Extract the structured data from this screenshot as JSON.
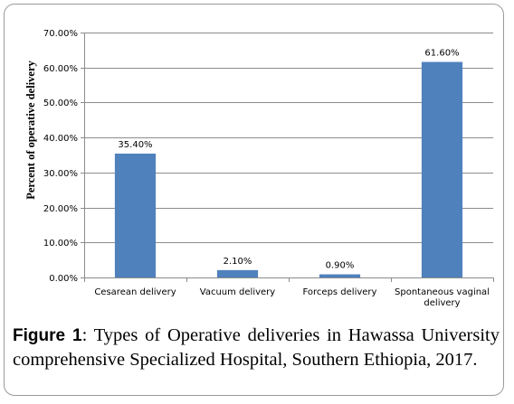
{
  "chart_data": {
    "type": "bar",
    "categories": [
      "Cesarean delivery",
      "Vacuum delivery",
      "Forceps delivery",
      "Spontaneous vaginal delivery"
    ],
    "category_lines": [
      [
        "Cesarean delivery"
      ],
      [
        "Vacuum delivery"
      ],
      [
        "Forceps delivery"
      ],
      [
        "Spontaneous vaginal",
        "delivery"
      ]
    ],
    "values": [
      35.4,
      2.1,
      0.9,
      61.6
    ],
    "value_labels": [
      "35.40%",
      "2.10%",
      "0.90%",
      "61.60%"
    ],
    "ylabel": "Percent of operative delivery",
    "xlabel": "",
    "ylim": [
      0,
      70
    ],
    "yticks": [
      0,
      10,
      20,
      30,
      40,
      50,
      60,
      70
    ],
    "ytick_labels": [
      "0.00%",
      "10.00%",
      "20.00%",
      "30.00%",
      "40.00%",
      "50.00%",
      "60.00%",
      "70.00%"
    ],
    "grid": true,
    "bar_color": "#4f81bd",
    "grid_color": "#8c8c8c"
  },
  "caption": {
    "label": "Figure 1",
    "text": ": Types of Operative deliveries in Hawassa University comprehensive Specialized Hospital, Southern Ethiopia, 2017."
  }
}
